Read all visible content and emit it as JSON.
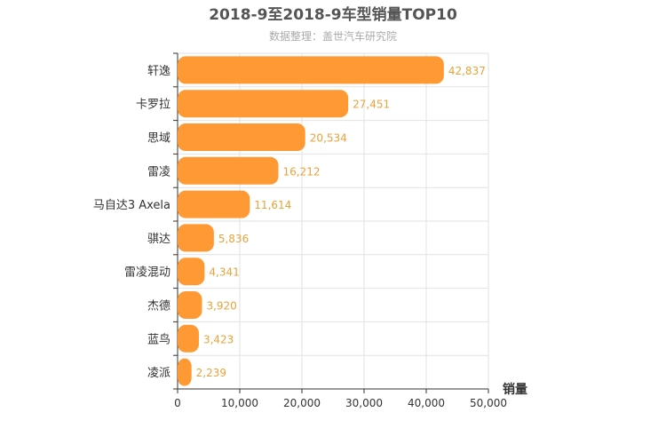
{
  "chart_data": {
    "type": "bar",
    "orientation": "horizontal",
    "title": "2018-9至2018-9车型销量TOP10",
    "subtitle": "数据整理：盖世汽车研究院",
    "xlabel": "销量",
    "ylabel": "",
    "categories": [
      "轩逸",
      "卡罗拉",
      "思域",
      "雷凌",
      "马自达3 Axela",
      "骐达",
      "雷凌混动",
      "杰德",
      "蓝鸟",
      "凌派"
    ],
    "values": [
      42837,
      27451,
      20534,
      16212,
      11614,
      5836,
      4341,
      3920,
      3423,
      2239
    ],
    "value_labels": [
      "42,837",
      "27,451",
      "20,534",
      "16,212",
      "11,614",
      "5,836",
      "4,341",
      "3,920",
      "3,423",
      "2,239"
    ],
    "xlim": [
      0,
      50000
    ],
    "xticks": [
      "0",
      "10,000",
      "20,000",
      "30,000",
      "40,000",
      "50,000"
    ],
    "grid": true,
    "bar_color": "#ff9933",
    "label_color": "#e8a33a"
  }
}
